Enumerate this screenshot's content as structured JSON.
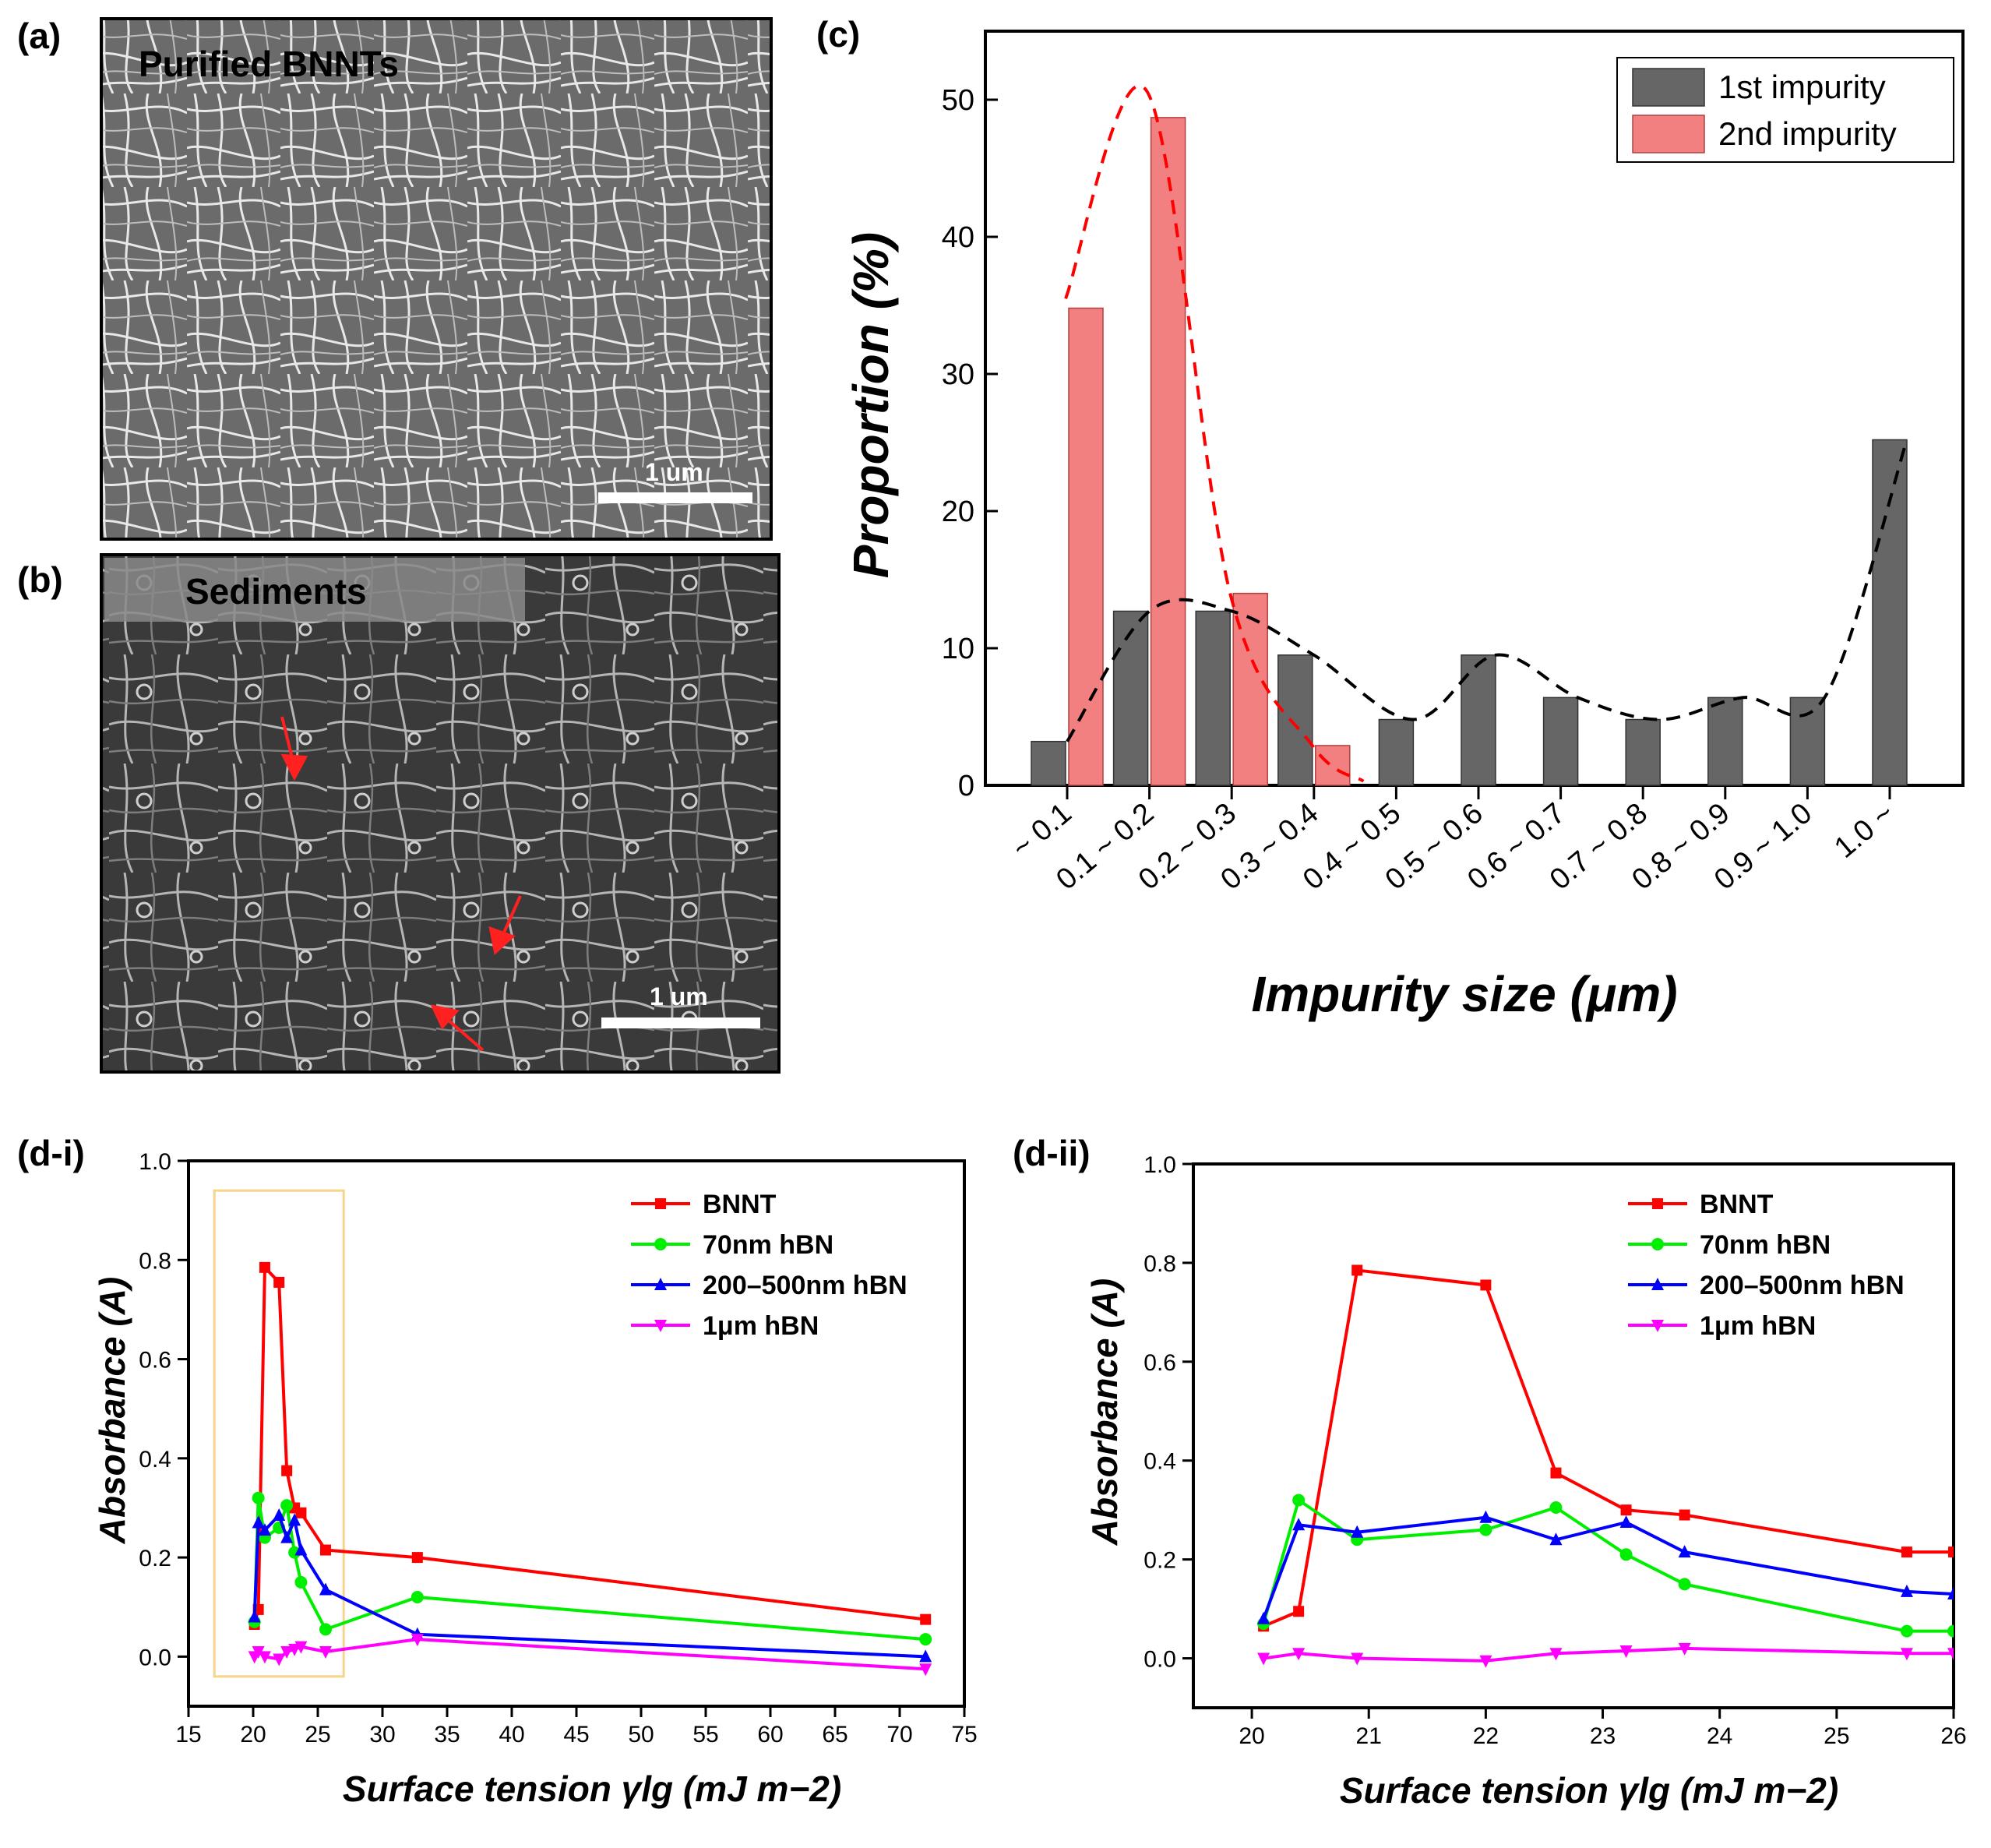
{
  "figure": {
    "panel_a": {
      "label": "(a)",
      "title": "Purified BNNTs",
      "scale_bar": "1 um"
    },
    "panel_b": {
      "label": "(b)",
      "title": "Sediments",
      "scale_bar": "1 um"
    },
    "panel_c": {
      "label": "(c)"
    },
    "panel_d1": {
      "label": "(d-i)"
    },
    "panel_d2": {
      "label": "(d-ii)"
    }
  },
  "colors": {
    "first_impurity": "#666666",
    "second_impurity": "#f28080",
    "bnnt": "#ff0000",
    "hbn_70nm": "#00ee00",
    "hbn_200_500nm": "#0000ff",
    "hbn_1um": "#ff00ff",
    "highlight_box": "#f5d58a"
  },
  "chart_data": [
    {
      "id": "c",
      "type": "bar",
      "xlabel": "Impurity size (μm)",
      "ylabel": "Proportion (%)",
      "ylim": [
        0,
        55
      ],
      "yticks": [
        0,
        10,
        20,
        30,
        40,
        50
      ],
      "categories": [
        "~ 0.1",
        "0.1 ~ 0.2",
        "0.2 ~ 0.3",
        "0.3 ~ 0.4",
        "0.4 ~ 0.5",
        "0.5 ~ 0.6",
        "0.6 ~ 0.7",
        "0.7 ~ 0.8",
        "0.8 ~ 0.9",
        "0.9 ~ 1.0",
        "1.0 ~"
      ],
      "legend_position": "top-right",
      "series": [
        {
          "name": "1st impurity",
          "values": [
            3.2,
            12.7,
            12.7,
            9.5,
            4.8,
            9.5,
            6.4,
            4.8,
            6.4,
            6.4,
            25.2
          ]
        },
        {
          "name": "2nd impurity",
          "values": [
            34.8,
            48.7,
            14.0,
            2.9,
            null,
            null,
            null,
            null,
            null,
            null,
            null
          ]
        }
      ],
      "trend_lines": [
        {
          "name": "1st impurity trend",
          "style": "dashed",
          "color": "#000000"
        },
        {
          "name": "2nd impurity trend",
          "style": "dashed",
          "color": "#ff0000"
        }
      ]
    },
    {
      "id": "d-i",
      "type": "line",
      "xlabel": "Surface tension γlg (mJ m−2)",
      "ylabel": "Absorbance (A)",
      "xlim": [
        15,
        75
      ],
      "ylim": [
        -0.1,
        1.0
      ],
      "xticks": [
        15,
        20,
        25,
        30,
        35,
        40,
        45,
        50,
        55,
        60,
        65,
        70,
        75
      ],
      "yticks": [
        0.0,
        0.2,
        0.4,
        0.6,
        0.8,
        1.0
      ],
      "legend_position": "top-right",
      "highlight_box_x": [
        17,
        27
      ],
      "series": [
        {
          "name": "BNNT",
          "marker": "square",
          "x": [
            20.1,
            20.4,
            20.9,
            22.0,
            22.6,
            23.2,
            23.7,
            25.6,
            32.7,
            72.0
          ],
          "y": [
            0.065,
            0.095,
            0.785,
            0.755,
            0.375,
            0.3,
            0.29,
            0.215,
            0.2,
            0.075
          ]
        },
        {
          "name": "70nm hBN",
          "marker": "circle",
          "x": [
            20.1,
            20.4,
            20.9,
            22.0,
            22.6,
            23.2,
            23.7,
            25.6,
            32.7,
            72.0
          ],
          "y": [
            0.07,
            0.32,
            0.24,
            0.26,
            0.305,
            0.21,
            0.15,
            0.055,
            0.12,
            0.035
          ]
        },
        {
          "name": "200–500nm hBN",
          "marker": "triangle-up",
          "x": [
            20.1,
            20.4,
            20.9,
            22.0,
            22.6,
            23.2,
            23.7,
            25.6,
            32.7,
            72.0
          ],
          "y": [
            0.08,
            0.27,
            0.255,
            0.285,
            0.24,
            0.275,
            0.215,
            0.135,
            0.045,
            0.0
          ]
        },
        {
          "name": "1μm hBN",
          "marker": "triangle-down",
          "x": [
            20.1,
            20.4,
            20.9,
            22.0,
            22.6,
            23.2,
            23.7,
            25.6,
            32.7,
            72.0
          ],
          "y": [
            0.0,
            0.01,
            0.0,
            -0.005,
            0.01,
            0.015,
            0.02,
            0.01,
            0.035,
            -0.025
          ]
        }
      ]
    },
    {
      "id": "d-ii",
      "type": "line",
      "xlabel": "Surface tension γlg (mJ m−2)",
      "ylabel": "Absorbance (A)",
      "xlim": [
        19.5,
        26
      ],
      "ylim": [
        -0.1,
        1.0
      ],
      "xticks": [
        20,
        21,
        22,
        23,
        24,
        25,
        26
      ],
      "yticks": [
        0.0,
        0.2,
        0.4,
        0.6,
        0.8,
        1.0
      ],
      "legend_position": "top-right",
      "series": [
        {
          "name": "BNNT",
          "marker": "square",
          "x": [
            20.1,
            20.4,
            20.9,
            22.0,
            22.6,
            23.2,
            23.7,
            25.6,
            26.0
          ],
          "y": [
            0.065,
            0.095,
            0.785,
            0.755,
            0.375,
            0.3,
            0.29,
            0.215,
            0.215
          ]
        },
        {
          "name": "70nm hBN",
          "marker": "circle",
          "x": [
            20.1,
            20.4,
            20.9,
            22.0,
            22.6,
            23.2,
            23.7,
            25.6,
            26.0
          ],
          "y": [
            0.07,
            0.32,
            0.24,
            0.26,
            0.305,
            0.21,
            0.15,
            0.055,
            0.055
          ]
        },
        {
          "name": "200–500nm hBN",
          "marker": "triangle-up",
          "x": [
            20.1,
            20.4,
            20.9,
            22.0,
            22.6,
            23.2,
            23.7,
            25.6,
            26.0
          ],
          "y": [
            0.08,
            0.27,
            0.255,
            0.285,
            0.24,
            0.275,
            0.215,
            0.135,
            0.13
          ]
        },
        {
          "name": "1μm hBN",
          "marker": "triangle-down",
          "x": [
            20.1,
            20.4,
            20.9,
            22.0,
            22.6,
            23.2,
            23.7,
            25.6,
            26.0
          ],
          "y": [
            0.0,
            0.01,
            0.0,
            -0.005,
            0.01,
            0.015,
            0.02,
            0.01,
            0.01
          ]
        }
      ]
    }
  ]
}
